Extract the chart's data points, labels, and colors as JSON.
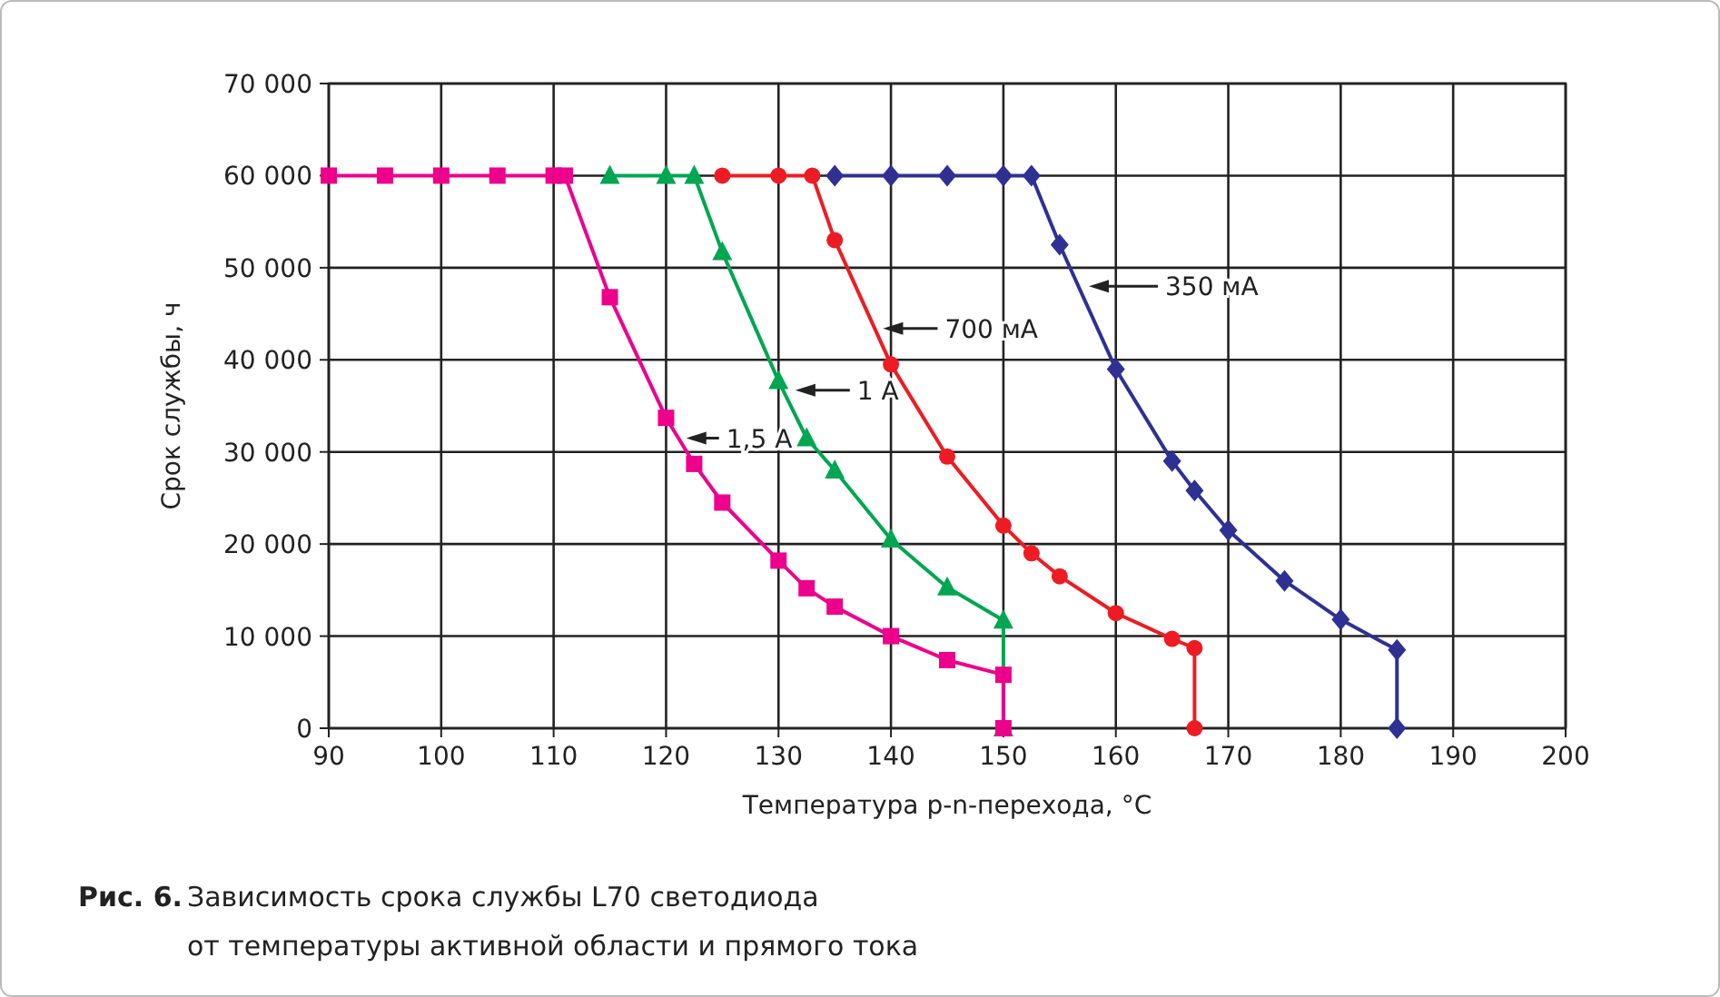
{
  "chart_data": {
    "type": "line",
    "xlabel": "Температура p-n-перехода, °C",
    "ylabel": "Срок службы, ч",
    "xlim": [
      90,
      200
    ],
    "xticks": [
      90,
      100,
      110,
      120,
      130,
      140,
      150,
      160,
      170,
      180,
      190,
      200
    ],
    "ylim": [
      0,
      70000
    ],
    "yticks": [
      {
        "value": 0,
        "label": "0"
      },
      {
        "value": 10000,
        "label": "10 000"
      },
      {
        "value": 20000,
        "label": "20 000"
      },
      {
        "value": 30000,
        "label": "30 000"
      },
      {
        "value": 40000,
        "label": "40 000"
      },
      {
        "value": 50000,
        "label": "50 000"
      },
      {
        "value": 60000,
        "label": "60 000"
      },
      {
        "value": 70000,
        "label": "70 000"
      }
    ],
    "grid": true,
    "series": [
      {
        "color": "#2e3192",
        "marker": "diamond",
        "x": [
          135,
          140,
          145,
          150,
          152.5,
          155,
          160,
          165,
          167,
          170,
          175,
          180,
          185,
          185
        ],
        "values": [
          60000,
          60000,
          60000,
          60000,
          60000,
          52500,
          39000,
          29000,
          25800,
          21500,
          16000,
          11800,
          8500,
          0
        ]
      },
      {
        "color": "#ed1c24",
        "marker": "circle",
        "x": [
          125,
          130,
          133,
          135,
          140,
          145,
          150,
          152.5,
          155,
          160,
          165,
          167,
          167
        ],
        "values": [
          60000,
          60000,
          60000,
          53000,
          39500,
          29500,
          22000,
          19000,
          16500,
          12500,
          9700,
          8700,
          0
        ]
      },
      {
        "color": "#00a651",
        "marker": "triangle",
        "x": [
          115,
          120,
          122.5,
          125,
          130,
          132.5,
          135,
          140,
          145,
          150,
          150
        ],
        "values": [
          60000,
          60000,
          60000,
          51700,
          37700,
          31500,
          28000,
          20500,
          15300,
          11700,
          0
        ]
      },
      {
        "color": "#ec008c",
        "marker": "square",
        "x": [
          90,
          95,
          100,
          105,
          110,
          111,
          115,
          120,
          122.5,
          125,
          130,
          132.5,
          135,
          140,
          145,
          150,
          150
        ],
        "values": [
          60000,
          60000,
          60000,
          60000,
          60000,
          60000,
          46800,
          33700,
          28700,
          24500,
          18200,
          15200,
          13200,
          10000,
          7400,
          5800,
          0
        ]
      }
    ],
    "annotations": [
      {
        "text": "350 мА",
        "x": 157.6,
        "y": 48000
      },
      {
        "text": "700 мА",
        "x": 139.3,
        "y": 43400
      },
      {
        "text": "1 А",
        "x": 131.5,
        "y": 36700
      },
      {
        "text": "1,5 А",
        "x": 121.8,
        "y": 31500
      },
      "Рис. 6.",
      "Зависимость срока службы L70 светодиода",
      "от температуры активной области и прямого тока"
    ]
  }
}
